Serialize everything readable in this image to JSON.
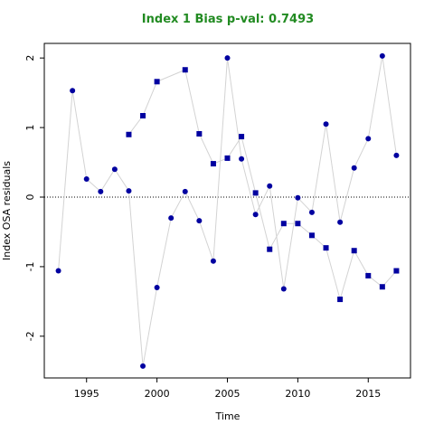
{
  "chart_data": {
    "type": "scatter-line",
    "title": "Index 1 Bias p-val: 0.7493",
    "title_color": "#228b22",
    "xlabel": "Time",
    "ylabel": "Index OSA residuals",
    "xlim": [
      1992,
      2018
    ],
    "xticks": [
      1995,
      2000,
      2005,
      2010,
      2015
    ],
    "ylim": [
      -2.6,
      2.21
    ],
    "yticks": [
      -2,
      -1,
      0,
      1,
      2
    ],
    "hline": 0,
    "series": [
      {
        "marker": "circle",
        "color": "#0000a0",
        "line_color": "#d3d3d3",
        "x": [
          1993,
          1994,
          1995,
          1996,
          1997,
          1998,
          1999,
          2000,
          2001,
          2002,
          2003,
          2004,
          2005,
          2006,
          2007,
          2008,
          2009,
          2010,
          2011,
          2012,
          2013,
          2014,
          2015,
          2016,
          2017
        ],
        "values": [
          -1.06,
          1.53,
          0.26,
          0.08,
          0.4,
          0.09,
          -2.43,
          -1.3,
          -0.3,
          0.08,
          -0.34,
          -0.92,
          2.0,
          0.55,
          -0.25,
          0.16,
          -1.32,
          -0.01,
          -0.22,
          1.05,
          -0.36,
          0.42,
          0.84,
          2.03,
          0.6
        ]
      },
      {
        "marker": "square",
        "color": "#0000a0",
        "line_color": "#d3d3d3",
        "x": [
          1998,
          1999,
          2000,
          2002,
          2003,
          2004,
          2005,
          2006,
          2007,
          2008,
          2009,
          2010,
          2011,
          2012,
          2013,
          2014,
          2015,
          2016,
          2017
        ],
        "values": [
          0.9,
          1.17,
          1.66,
          1.83,
          0.91,
          0.48,
          0.56,
          0.87,
          0.06,
          -0.75,
          -0.38,
          -0.38,
          -0.55,
          -0.73,
          -1.47,
          -0.77,
          -1.13,
          -1.29,
          -1.06
        ]
      }
    ]
  }
}
